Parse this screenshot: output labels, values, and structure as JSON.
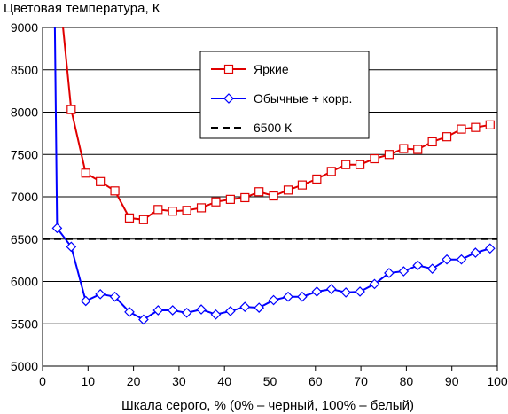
{
  "chart_data": {
    "type": "line",
    "title": "",
    "ylabel": "Цветовая температура, К",
    "xlabel": "Шкала серого, % (0% – черный, 100% – белый)",
    "xlim": [
      0,
      100
    ],
    "ylim": [
      5000,
      9000
    ],
    "x_ticks": [
      "0",
      "10",
      "20",
      "30",
      "40",
      "50",
      "60",
      "70",
      "80",
      "90",
      "100"
    ],
    "y_ticks": [
      "5000",
      "5500",
      "6000",
      "6500",
      "7000",
      "7500",
      "8000",
      "8500",
      "9000"
    ],
    "grid": "horizontal",
    "legend_position": "center-right",
    "series": [
      {
        "name": "Яркие",
        "color": "#e00000",
        "marker": "square",
        "x": [
          4.5,
          6.3,
          9.5,
          12.7,
          15.9,
          19.1,
          22.2,
          25.4,
          28.6,
          31.7,
          34.9,
          38.1,
          41.3,
          44.5,
          47.6,
          50.8,
          54.0,
          57.1,
          60.3,
          63.5,
          66.7,
          69.8,
          73.0,
          76.2,
          79.4,
          82.5,
          85.7,
          88.9,
          92.1,
          95.2,
          98.4
        ],
        "y": [
          9000,
          8030,
          7280,
          7180,
          7070,
          6750,
          6730,
          6850,
          6830,
          6840,
          6870,
          6940,
          6970,
          6990,
          7060,
          7010,
          7080,
          7140,
          7210,
          7300,
          7380,
          7380,
          7450,
          7500,
          7570,
          7560,
          7650,
          7710,
          7800,
          7820,
          7850
        ]
      },
      {
        "name": "Обычные + корр.",
        "color": "#0000ff",
        "marker": "diamond",
        "x": [
          2.7,
          3.2,
          6.3,
          9.5,
          12.7,
          15.9,
          19.1,
          22.2,
          25.4,
          28.6,
          31.7,
          34.9,
          38.1,
          41.3,
          44.5,
          47.6,
          50.8,
          54.0,
          57.1,
          60.3,
          63.5,
          66.7,
          69.8,
          73.0,
          76.2,
          79.4,
          82.5,
          85.7,
          88.9,
          92.1,
          95.2,
          98.4
        ],
        "y": [
          9000,
          6630,
          6410,
          5770,
          5850,
          5820,
          5640,
          5550,
          5660,
          5660,
          5630,
          5670,
          5610,
          5650,
          5700,
          5690,
          5780,
          5820,
          5820,
          5880,
          5910,
          5870,
          5880,
          5970,
          6100,
          6120,
          6190,
          6150,
          6260,
          6260,
          6340,
          6390
        ]
      },
      {
        "name": "6500 К",
        "color": "#000000",
        "dash": true,
        "x": [
          0,
          100
        ],
        "y": [
          6500,
          6500
        ]
      }
    ]
  }
}
